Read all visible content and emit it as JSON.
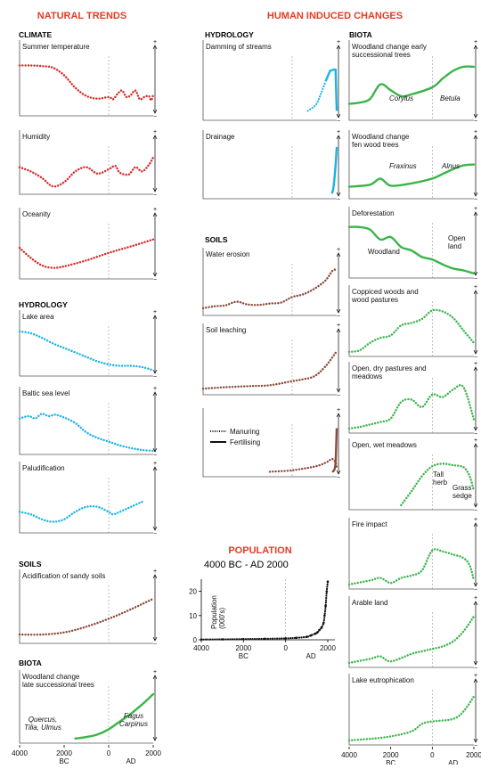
{
  "headers": {
    "natural": "NATURAL TRENDS",
    "human": "HUMAN INDUCED CHANGES",
    "population": "POPULATION"
  },
  "sections": {
    "climate": "CLIMATE",
    "hydrology_left": "HYDROLOGY",
    "soils_left": "SOILS",
    "biota_left": "BIOTA",
    "hydrology_mid": "HYDROLOGY",
    "soils_mid": "SOILS",
    "biota_right": "BIOTA"
  },
  "panels": {
    "summer_temp": "Summer temperature",
    "humidity": "Humidity",
    "oceanity": "Oceanity",
    "lake_area": "Lake area",
    "baltic": "Baltic sea level",
    "paludification": "Paludification",
    "acidification": "Acidification of sandy soils",
    "woodland_late": "Woodland change\nlate successional trees",
    "damming": "Damming of streams",
    "drainage": "Drainage",
    "water_erosion": "Water erosion",
    "soil_leaching": "Soil leaching",
    "woodland_early": "Woodland change early\nsuccessional trees",
    "woodland_fen": "Woodland change\nfen wood trees",
    "deforestation": "Deforestation",
    "coppiced": "Coppiced woods and\nwood pastures",
    "open_dry": "Open, dry pastures and\nmeadows",
    "open_wet": "Open, wet meadows",
    "fire": "Fire impact",
    "arable": "Arable land",
    "lake_eutro": "Lake eutrophication"
  },
  "species": {
    "quercus": "Quercus,\nTilia, Ulmus",
    "fagus": "Fagus\nCarpinus",
    "corylus": "Corylus",
    "betula": "Betula",
    "fraxinus": "Fraxinus",
    "alnus": "Alnus",
    "woodland": "Woodland",
    "open_land": "Open\nland",
    "tall_herb": "Tall\nherb",
    "grass_sedge": "Grass\nsedge"
  },
  "legend": {
    "manuring": "Manuring",
    "fertilising": "Fertilising"
  },
  "population": {
    "subtitle": "4000 BC - AD 2000",
    "ylabel": "Population\n(000's)",
    "yticks": [
      "20",
      "10",
      "0"
    ],
    "xticks": [
      "4000",
      "2000",
      "0",
      "2000"
    ],
    "era": [
      "BC",
      "AD"
    ]
  },
  "axis": {
    "xticks": [
      "4000",
      "2000",
      "0",
      "2000"
    ],
    "era": [
      "BC",
      "AD"
    ],
    "plus": "+",
    "minus": "−"
  },
  "colors": {
    "header": "#e63a24",
    "red": "#d42b2b",
    "blue": "#1ab3e6",
    "brown": "#8b4a3a",
    "green": "#3ab54a",
    "black": "#111111"
  },
  "chart_data": {
    "type": "line",
    "x_units": "years (BC negative, AD positive)",
    "xlim": [
      -4000,
      2000
    ],
    "ylim": [
      0,
      25
    ],
    "series": [
      {
        "x": [
          -4000,
          -3000,
          -2000,
          -1000,
          0,
          500,
          1000,
          1200,
          1400,
          1500,
          1600,
          1700,
          1800,
          1850,
          1900,
          1950,
          2000
        ],
        "values": [
          0.1,
          0.2,
          0.3,
          0.4,
          0.6,
          0.8,
          1.2,
          1.8,
          2.5,
          3,
          4,
          5,
          7,
          10,
          14,
          20,
          24
        ]
      }
    ]
  },
  "trends": {
    "summer_temp": [
      [
        -4000,
        0.86
      ],
      [
        -3500,
        0.86
      ],
      [
        -3000,
        0.85
      ],
      [
        -2500,
        0.82
      ],
      [
        -2000,
        0.68
      ],
      [
        -1500,
        0.45
      ],
      [
        -1000,
        0.3
      ],
      [
        -500,
        0.25
      ],
      [
        0,
        0.28
      ],
      [
        200,
        0.24
      ],
      [
        400,
        0.34
      ],
      [
        600,
        0.4
      ],
      [
        800,
        0.28
      ],
      [
        1000,
        0.32
      ],
      [
        1200,
        0.4
      ],
      [
        1400,
        0.24
      ],
      [
        1600,
        0.28
      ],
      [
        1800,
        0.3
      ],
      [
        1900,
        0.22
      ],
      [
        2000,
        0.32
      ]
    ],
    "humidity": [
      [
        -4000,
        0.55
      ],
      [
        -3500,
        0.45
      ],
      [
        -3000,
        0.3
      ],
      [
        -2500,
        0.1
      ],
      [
        -2000,
        0.2
      ],
      [
        -1500,
        0.45
      ],
      [
        -1000,
        0.55
      ],
      [
        -500,
        0.4
      ],
      [
        0,
        0.5
      ],
      [
        300,
        0.58
      ],
      [
        500,
        0.42
      ],
      [
        900,
        0.38
      ],
      [
        1200,
        0.55
      ],
      [
        1500,
        0.45
      ],
      [
        1800,
        0.6
      ],
      [
        2000,
        0.78
      ]
    ],
    "oceanity": [
      [
        -4000,
        0.55
      ],
      [
        -3500,
        0.35
      ],
      [
        -3000,
        0.2
      ],
      [
        -2500,
        0.15
      ],
      [
        -2000,
        0.18
      ],
      [
        -1000,
        0.3
      ],
      [
        0,
        0.45
      ],
      [
        1000,
        0.58
      ],
      [
        2000,
        0.72
      ]
    ],
    "lake_area": [
      [
        -4000,
        0.92
      ],
      [
        -3500,
        0.88
      ],
      [
        -3000,
        0.78
      ],
      [
        -2500,
        0.65
      ],
      [
        -2000,
        0.55
      ],
      [
        -1500,
        0.45
      ],
      [
        -1000,
        0.35
      ],
      [
        -500,
        0.25
      ],
      [
        0,
        0.18
      ],
      [
        500,
        0.15
      ],
      [
        1000,
        0.15
      ],
      [
        1500,
        0.12
      ],
      [
        2000,
        0.05
      ]
    ],
    "baltic": [
      [
        -4000,
        0.7
      ],
      [
        -3600,
        0.75
      ],
      [
        -3300,
        0.7
      ],
      [
        -3000,
        0.8
      ],
      [
        -2700,
        0.75
      ],
      [
        -2400,
        0.78
      ],
      [
        -2000,
        0.72
      ],
      [
        -1500,
        0.6
      ],
      [
        -1000,
        0.4
      ],
      [
        -500,
        0.28
      ],
      [
        0,
        0.2
      ],
      [
        500,
        0.12
      ],
      [
        1000,
        0.06
      ],
      [
        1500,
        0.02
      ],
      [
        2000,
        0.0
      ]
    ],
    "paludification": [
      [
        -4000,
        0.35
      ],
      [
        -3500,
        0.3
      ],
      [
        -3000,
        0.2
      ],
      [
        -2500,
        0.15
      ],
      [
        -2000,
        0.2
      ],
      [
        -1500,
        0.35
      ],
      [
        -1000,
        0.45
      ],
      [
        -500,
        0.45
      ],
      [
        0,
        0.35
      ],
      [
        200,
        0.3
      ],
      [
        500,
        0.35
      ],
      [
        1000,
        0.45
      ],
      [
        1500,
        0.55
      ]
    ],
    "acidification": [
      [
        -4000,
        0.1
      ],
      [
        -3000,
        0.1
      ],
      [
        -2000,
        0.14
      ],
      [
        -1000,
        0.25
      ],
      [
        0,
        0.4
      ],
      [
        1000,
        0.58
      ],
      [
        2000,
        0.78
      ]
    ],
    "woodland_late": [
      [
        -1500,
        0.02
      ],
      [
        -1000,
        0.05
      ],
      [
        -500,
        0.1
      ],
      [
        0,
        0.2
      ],
      [
        500,
        0.35
      ],
      [
        1000,
        0.5
      ],
      [
        1500,
        0.68
      ],
      [
        2000,
        0.88
      ]
    ],
    "damming": [
      [
        700,
        0.1
      ],
      [
        900,
        0.15
      ],
      [
        1100,
        0.22
      ],
      [
        1300,
        0.4
      ],
      [
        1500,
        0.6
      ],
      [
        1700,
        0.78
      ],
      [
        1850,
        0.8
      ],
      [
        1950,
        0.8
      ],
      [
        2000,
        0.1
      ]
    ],
    "drainage": [
      [
        1800,
        0.05
      ],
      [
        1850,
        0.15
      ],
      [
        1900,
        0.35
      ],
      [
        1950,
        0.65
      ],
      [
        2000,
        1.0
      ]
    ],
    "water_erosion": [
      [
        -4000,
        0.08
      ],
      [
        -3500,
        0.12
      ],
      [
        -3000,
        0.14
      ],
      [
        -2500,
        0.22
      ],
      [
        -2000,
        0.16
      ],
      [
        -1500,
        0.15
      ],
      [
        -1000,
        0.18
      ],
      [
        -500,
        0.2
      ],
      [
        0,
        0.32
      ],
      [
        500,
        0.38
      ],
      [
        1000,
        0.5
      ],
      [
        1500,
        0.68
      ],
      [
        1800,
        0.88
      ],
      [
        2000,
        0.92
      ]
    ],
    "soil_leaching": [
      [
        -4000,
        0.05
      ],
      [
        -3000,
        0.08
      ],
      [
        -2000,
        0.1
      ],
      [
        -1000,
        0.12
      ],
      [
        0,
        0.2
      ],
      [
        500,
        0.24
      ],
      [
        1000,
        0.3
      ],
      [
        1500,
        0.5
      ],
      [
        2000,
        0.8
      ]
    ],
    "manuring": [
      [
        -1000,
        0.03
      ],
      [
        0,
        0.06
      ],
      [
        1000,
        0.14
      ],
      [
        1500,
        0.22
      ],
      [
        1800,
        0.3
      ],
      [
        1950,
        0.22
      ],
      [
        2000,
        0.1
      ]
    ],
    "fertilising": [
      [
        1800,
        0.02
      ],
      [
        1900,
        0.08
      ],
      [
        1950,
        0.25
      ],
      [
        2000,
        0.95
      ]
    ],
    "woodland_early": [
      [
        -4000,
        0.22
      ],
      [
        -3500,
        0.24
      ],
      [
        -3000,
        0.3
      ],
      [
        -2500,
        0.55
      ],
      [
        -2000,
        0.45
      ],
      [
        -1500,
        0.35
      ],
      [
        -1000,
        0.38
      ],
      [
        0,
        0.5
      ],
      [
        500,
        0.65
      ],
      [
        1000,
        0.78
      ],
      [
        1500,
        0.85
      ],
      [
        2000,
        0.85
      ]
    ],
    "woodland_fen": [
      [
        -4000,
        0.18
      ],
      [
        -3000,
        0.22
      ],
      [
        -2500,
        0.35
      ],
      [
        -2000,
        0.2
      ],
      [
        -1000,
        0.25
      ],
      [
        0,
        0.35
      ],
      [
        500,
        0.45
      ],
      [
        1000,
        0.55
      ],
      [
        1500,
        0.63
      ],
      [
        2000,
        0.65
      ]
    ],
    "deforestation": [
      [
        -4000,
        0.95
      ],
      [
        -3500,
        0.95
      ],
      [
        -3000,
        0.9
      ],
      [
        -2500,
        0.7
      ],
      [
        -2000,
        0.75
      ],
      [
        -1500,
        0.55
      ],
      [
        -1000,
        0.48
      ],
      [
        -500,
        0.35
      ],
      [
        0,
        0.3
      ],
      [
        500,
        0.2
      ],
      [
        1000,
        0.12
      ],
      [
        1500,
        0.08
      ],
      [
        2000,
        0.02
      ]
    ],
    "coppiced": [
      [
        -4000,
        0.02
      ],
      [
        -3500,
        0.05
      ],
      [
        -3000,
        0.2
      ],
      [
        -2500,
        0.3
      ],
      [
        -2000,
        0.35
      ],
      [
        -1500,
        0.55
      ],
      [
        -1000,
        0.6
      ],
      [
        -500,
        0.68
      ],
      [
        0,
        0.85
      ],
      [
        500,
        0.83
      ],
      [
        1000,
        0.7
      ],
      [
        1500,
        0.45
      ],
      [
        2000,
        0.2
      ]
    ],
    "open_dry": [
      [
        -4000,
        0.02
      ],
      [
        -3500,
        0.05
      ],
      [
        -3000,
        0.1
      ],
      [
        -2500,
        0.15
      ],
      [
        -2000,
        0.22
      ],
      [
        -1500,
        0.55
      ],
      [
        -1000,
        0.6
      ],
      [
        -500,
        0.45
      ],
      [
        0,
        0.7
      ],
      [
        500,
        0.65
      ],
      [
        1000,
        0.8
      ],
      [
        1500,
        0.85
      ],
      [
        2000,
        0.2
      ]
    ],
    "open_wet": [
      [
        -1500,
        0.02
      ],
      [
        -1000,
        0.3
      ],
      [
        -500,
        0.6
      ],
      [
        0,
        0.8
      ],
      [
        500,
        0.85
      ],
      [
        1000,
        0.82
      ],
      [
        1500,
        0.78
      ],
      [
        1800,
        0.6
      ],
      [
        2000,
        0.3
      ]
    ],
    "fire": [
      [
        -4000,
        0.02
      ],
      [
        -3000,
        0.1
      ],
      [
        -2500,
        0.15
      ],
      [
        -2000,
        0.05
      ],
      [
        -1500,
        0.15
      ],
      [
        -1000,
        0.2
      ],
      [
        -500,
        0.3
      ],
      [
        0,
        0.7
      ],
      [
        500,
        0.68
      ],
      [
        1000,
        0.62
      ],
      [
        1500,
        0.55
      ],
      [
        1800,
        0.4
      ],
      [
        2000,
        0.1
      ]
    ],
    "arable": [
      [
        -4000,
        0.02
      ],
      [
        -3000,
        0.1
      ],
      [
        -2500,
        0.15
      ],
      [
        -2000,
        0.05
      ],
      [
        -1000,
        0.2
      ],
      [
        -500,
        0.25
      ],
      [
        0,
        0.3
      ],
      [
        500,
        0.35
      ],
      [
        1000,
        0.45
      ],
      [
        1500,
        0.65
      ],
      [
        2000,
        0.95
      ]
    ],
    "lake_eutro": [
      [
        -4000,
        0.02
      ],
      [
        -3000,
        0.05
      ],
      [
        -2000,
        0.1
      ],
      [
        -1000,
        0.2
      ],
      [
        -500,
        0.35
      ],
      [
        0,
        0.4
      ],
      [
        1000,
        0.45
      ],
      [
        1500,
        0.6
      ],
      [
        2000,
        0.9
      ]
    ]
  }
}
